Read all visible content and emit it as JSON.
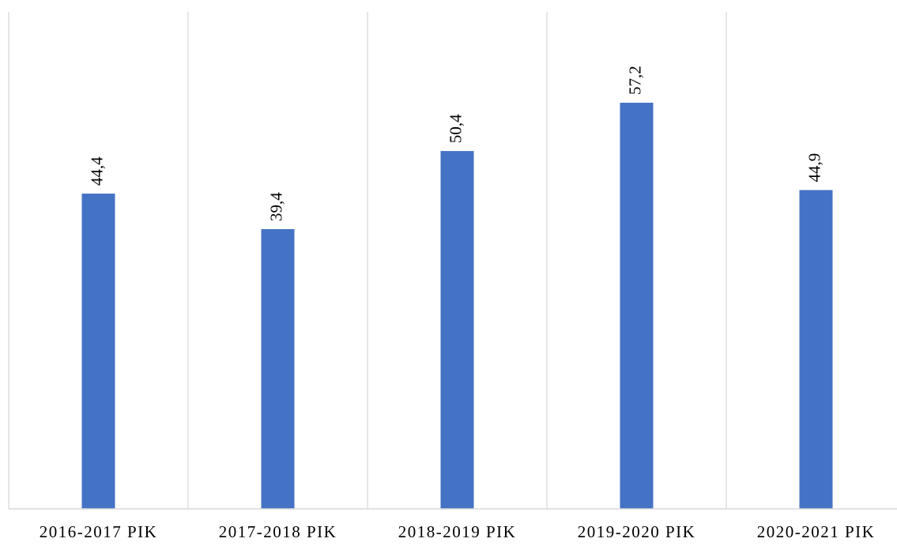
{
  "chart_data": {
    "type": "bar",
    "categories": [
      "2016-2017 PIK",
      "2017-2018 PIK",
      "2018-2019 PIK",
      "2019-2020 PIK",
      "2020-2021 PIK"
    ],
    "values": [
      44.4,
      39.4,
      50.4,
      57.2,
      44.9
    ],
    "value_labels": [
      "44,4",
      "39,4",
      "50,4",
      "57,2",
      "44,9"
    ],
    "color": "#4472c4",
    "ylim": [
      0,
      70
    ]
  }
}
